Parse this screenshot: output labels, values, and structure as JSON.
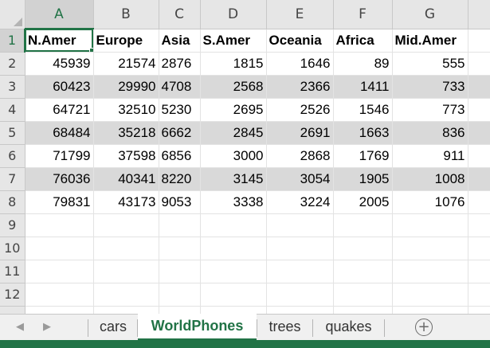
{
  "columns": [
    "A",
    "B",
    "C",
    "D",
    "E",
    "F",
    "G"
  ],
  "headers": [
    "N.Amer",
    "Europe",
    "Asia",
    "S.Amer",
    "Oceania",
    "Africa",
    "Mid.Amer"
  ],
  "rows": [
    [
      "45939",
      "21574",
      "2876",
      "1815",
      "1646",
      "89",
      "555"
    ],
    [
      "60423",
      "29990",
      "4708",
      "2568",
      "2366",
      "1411",
      "733"
    ],
    [
      "64721",
      "32510",
      "5230",
      "2695",
      "2526",
      "1546",
      "773"
    ],
    [
      "68484",
      "35218",
      "6662",
      "2845",
      "2691",
      "1663",
      "836"
    ],
    [
      "71799",
      "37598",
      "6856",
      "3000",
      "2868",
      "1769",
      "911"
    ],
    [
      "76036",
      "40341",
      "8220",
      "3145",
      "3054",
      "1905",
      "1008"
    ],
    [
      "79831",
      "43173",
      "9053",
      "3338",
      "3224",
      "2005",
      "1076"
    ]
  ],
  "row_numbers": [
    "1",
    "2",
    "3",
    "4",
    "5",
    "6",
    "7",
    "8",
    "9",
    "10",
    "11",
    "12"
  ],
  "selected_cell": "A1",
  "sheet_tabs": [
    {
      "label": "cars",
      "active": false
    },
    {
      "label": "WorldPhones",
      "active": true
    },
    {
      "label": "trees",
      "active": false
    },
    {
      "label": "quakes",
      "active": false
    }
  ],
  "icons": {
    "prev_sheet": "◀",
    "next_sheet": "▶",
    "add_sheet": "+"
  },
  "colors": {
    "accent": "#217346",
    "band": "#d9d9d9"
  }
}
